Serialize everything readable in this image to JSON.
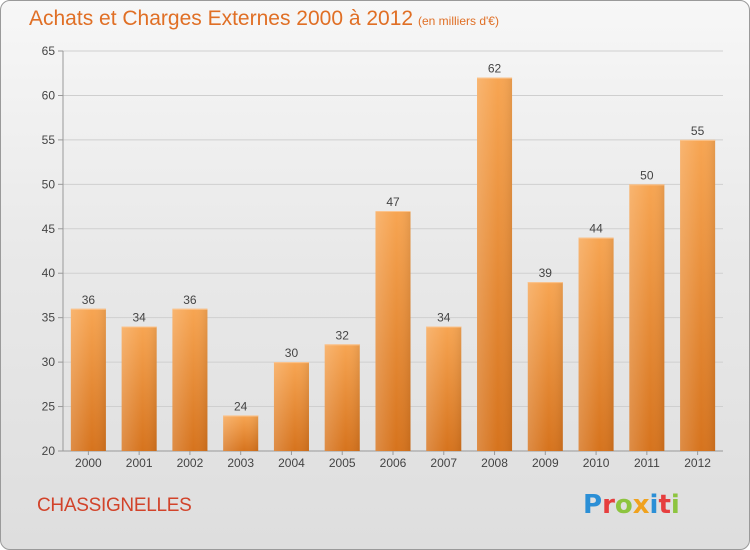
{
  "header": {
    "title": "Achats et Charges Externes 2000 à 2012",
    "subtitle": "(en milliers d'€)"
  },
  "footer": {
    "town": "CHASSIGNELLES",
    "logo_text": "Proxiti",
    "logo_letters": [
      {
        "char": "P",
        "color": "#2b8fd6"
      },
      {
        "char": "r",
        "color": "#e63e3e"
      },
      {
        "char": "o",
        "color": "#8dc43f"
      },
      {
        "char": "x",
        "color": "#f0a21e"
      },
      {
        "char": "i",
        "color": "#2b8fd6"
      },
      {
        "char": "t",
        "color": "#e63e3e"
      },
      {
        "char": "i",
        "color": "#8dc43f"
      }
    ]
  },
  "colors": {
    "bar_top": "#f7a552",
    "bar_bottom": "#d6731d",
    "text_accent": "#e06f25",
    "town_color": "#d2432a"
  },
  "chart_data": {
    "type": "bar",
    "title": "Achats et Charges Externes 2000 à 2012",
    "subtitle": "(en milliers d'€)",
    "xlabel": "",
    "ylabel": "",
    "categories": [
      "2000",
      "2001",
      "2002",
      "2003",
      "2004",
      "2005",
      "2006",
      "2007",
      "2008",
      "2009",
      "2010",
      "2011",
      "2012"
    ],
    "values": [
      36,
      34,
      36,
      24,
      30,
      32,
      47,
      34,
      62,
      39,
      44,
      50,
      55
    ],
    "ylim": [
      20,
      65
    ],
    "yticks": [
      20,
      25,
      30,
      35,
      40,
      45,
      50,
      55,
      60,
      65
    ],
    "grid": true,
    "legend": "none",
    "data_labels": true
  }
}
